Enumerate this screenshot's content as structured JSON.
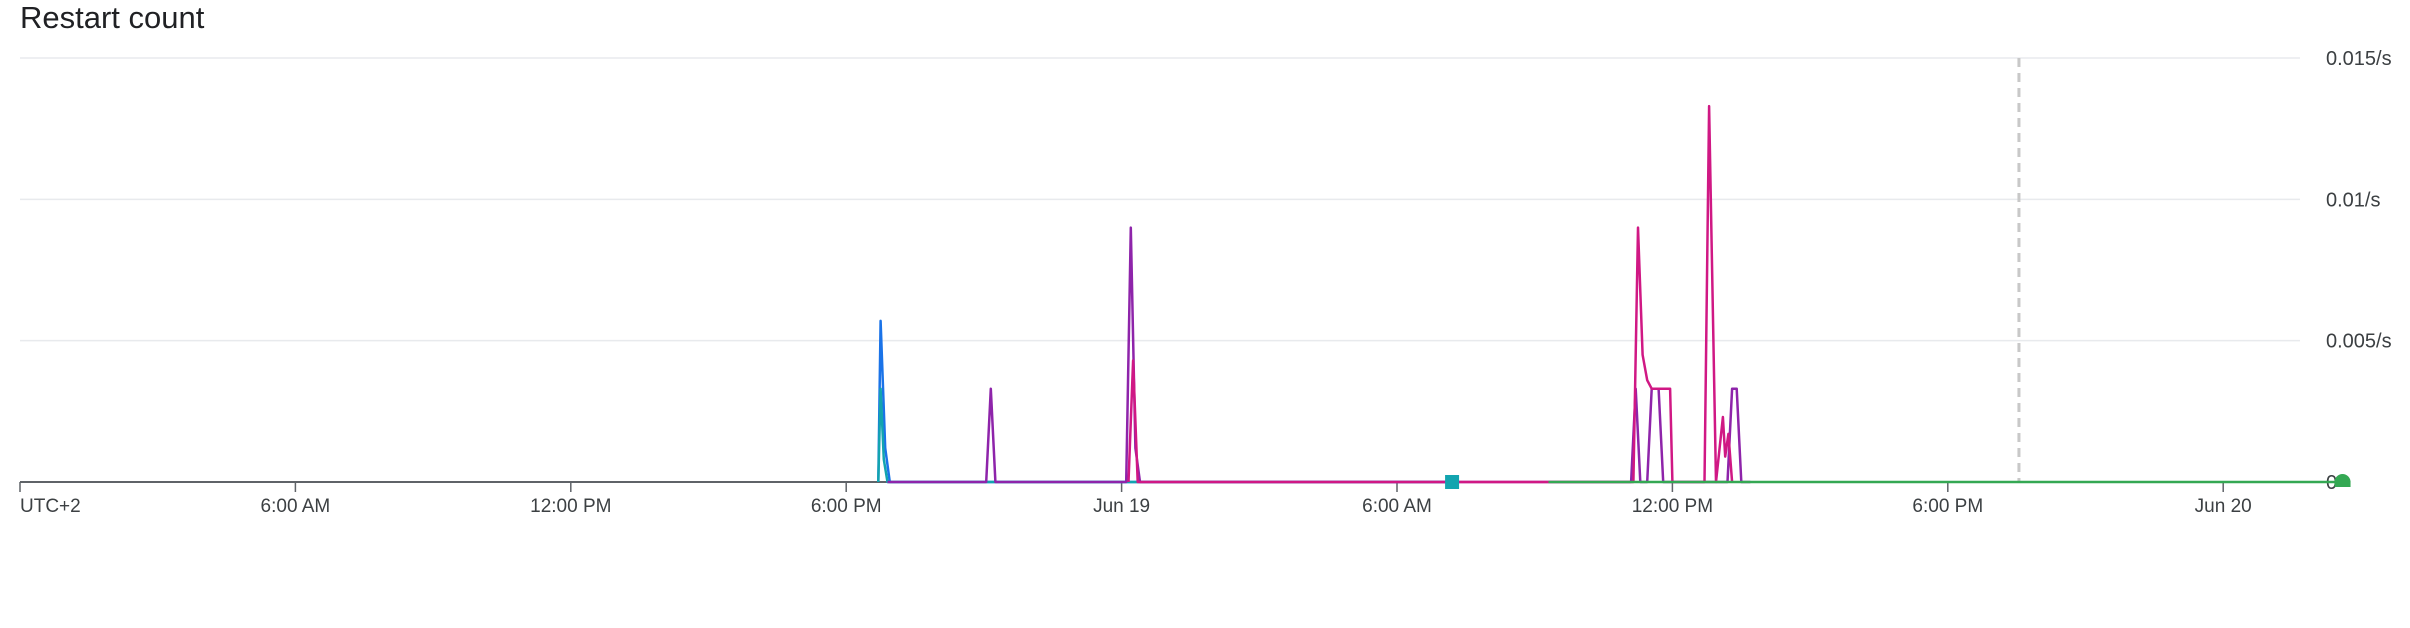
{
  "chart_data": {
    "type": "line",
    "title": "Restart count",
    "y_unit": "/s",
    "ylim": [
      0,
      0.015
    ],
    "y_ticks": [
      {
        "value": 0,
        "label": "0"
      },
      {
        "value": 0.005,
        "label": "0.005/s"
      },
      {
        "value": 0.01,
        "label": "0.01/s"
      },
      {
        "value": 0.015,
        "label": "0.015/s"
      }
    ],
    "x_range_hours": [
      0,
      50
    ],
    "x_ticks": [
      {
        "hour": 0,
        "label": "UTC+2"
      },
      {
        "hour": 6,
        "label": "6:00 AM"
      },
      {
        "hour": 12,
        "label": "12:00 PM"
      },
      {
        "hour": 18,
        "label": "6:00 PM"
      },
      {
        "hour": 24,
        "label": "Jun 19"
      },
      {
        "hour": 30,
        "label": "6:00 AM"
      },
      {
        "hour": 36,
        "label": "12:00 PM"
      },
      {
        "hour": 42,
        "label": "6:00 PM"
      },
      {
        "hour": 48,
        "label": "Jun 20"
      }
    ],
    "current_time_hour": 43.55,
    "grid": true,
    "colors": {
      "blue": "#1a73e8",
      "teal": "#12a4af",
      "purple": "#8e24aa",
      "magenta": "#d01884",
      "green": "#34a853",
      "grid": "#e8eaed",
      "axis": "#5f6368",
      "now_line": "#c8c8c8"
    },
    "series": [
      {
        "color": "blue",
        "points": [
          [
            18.7,
            0
          ],
          [
            18.75,
            0.0057
          ],
          [
            18.85,
            0.0012
          ],
          [
            18.95,
            0
          ],
          [
            31.2,
            0
          ]
        ]
      },
      {
        "color": "teal",
        "points": [
          [
            18.7,
            0
          ],
          [
            18.75,
            0.0033
          ],
          [
            18.82,
            0.0008
          ],
          [
            18.9,
            0
          ],
          [
            31.2,
            0
          ]
        ],
        "end_marker": "square"
      },
      {
        "color": "purple",
        "points": [
          [
            18.9,
            0
          ],
          [
            21.05,
            0
          ],
          [
            21.15,
            0.0033
          ],
          [
            21.25,
            0
          ],
          [
            24.1,
            0
          ],
          [
            24.2,
            0.009
          ],
          [
            24.3,
            0.0012
          ],
          [
            24.4,
            0
          ],
          [
            35.1,
            0
          ],
          [
            35.2,
            0.0033
          ],
          [
            35.3,
            0
          ],
          [
            35.45,
            0
          ],
          [
            35.55,
            0.0033
          ],
          [
            35.7,
            0.0033
          ],
          [
            35.8,
            0
          ],
          [
            37.2,
            0
          ],
          [
            37.3,
            0.0033
          ],
          [
            37.4,
            0.0033
          ],
          [
            37.5,
            0
          ],
          [
            37.7,
            0
          ]
        ]
      },
      {
        "color": "magenta",
        "points": [
          [
            24.15,
            0
          ],
          [
            24.25,
            0.0043
          ],
          [
            24.35,
            0
          ],
          [
            35.15,
            0
          ],
          [
            35.25,
            0.009
          ],
          [
            35.35,
            0.0045
          ],
          [
            35.45,
            0.0036
          ],
          [
            35.55,
            0.0033
          ],
          [
            35.95,
            0.0033
          ],
          [
            36.0,
            0
          ],
          [
            36.7,
            0
          ],
          [
            36.8,
            0.0133
          ],
          [
            36.95,
            0
          ],
          [
            37.1,
            0.0023
          ],
          [
            37.15,
            0.0009
          ],
          [
            37.22,
            0.0017
          ],
          [
            37.3,
            0
          ]
        ]
      },
      {
        "color": "green",
        "points": [
          [
            33.3,
            0
          ],
          [
            50.6,
            0
          ]
        ],
        "end_marker": "half-circle"
      }
    ]
  }
}
